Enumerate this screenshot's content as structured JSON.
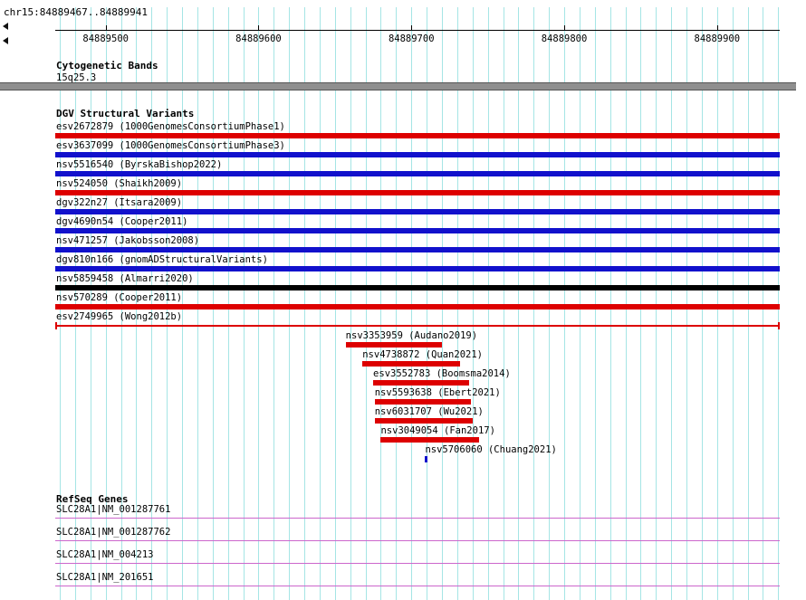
{
  "chart_data": {
    "type": "bar",
    "title": "chr15:84889467..84889941",
    "xlabel": "",
    "ylabel": "",
    "x_range": [
      84889467,
      84889941
    ],
    "x_ticks": [
      84889500,
      84889600,
      84889700,
      84889800,
      84889900
    ],
    "x_minor_step": 10,
    "grid": "on",
    "tracks": [
      {
        "label": "esv2672879 (1000GenomesConsortiumPhase1)",
        "color": "red",
        "style": "box",
        "start": 84889467,
        "end": 84889941
      },
      {
        "label": "esv3637099 (1000GenomesConsortiumPhase3)",
        "color": "blue",
        "style": "box",
        "start": 84889467,
        "end": 84889941
      },
      {
        "label": "nsv5516540 (ByrskaBishop2022)",
        "color": "blue",
        "style": "box",
        "start": 84889467,
        "end": 84889941
      },
      {
        "label": "nsv524050 (Shaikh2009)",
        "color": "red",
        "style": "box",
        "start": 84889467,
        "end": 84889941
      },
      {
        "label": "dgv322n27 (Itsara2009)",
        "color": "blue",
        "style": "box",
        "start": 84889467,
        "end": 84889941
      },
      {
        "label": "dgv4690n54 (Cooper2011)",
        "color": "blue",
        "style": "box",
        "start": 84889467,
        "end": 84889941
      },
      {
        "label": "nsv471257 (Jakobsson2008)",
        "color": "blue",
        "style": "box",
        "start": 84889467,
        "end": 84889941
      },
      {
        "label": "dgv810n166 (gnomADStructuralVariants)",
        "color": "blue",
        "style": "box",
        "start": 84889467,
        "end": 84889941
      },
      {
        "label": "nsv5859458 (Almarri2020)",
        "color": "black",
        "style": "box",
        "start": 84889467,
        "end": 84889941
      },
      {
        "label": "nsv570289 (Cooper2011)",
        "color": "red",
        "style": "box",
        "start": 84889467,
        "end": 84889941
      },
      {
        "label": "esv2749965 (Wong2012b)",
        "color": "red",
        "style": "line",
        "start": 84889467,
        "end": 84889941
      },
      {
        "label": "nsv3353959 (Audano2019)",
        "color": "red",
        "style": "box",
        "start": 84889657,
        "end": 84889720
      },
      {
        "label": "nsv4738872 (Quan2021)",
        "color": "red",
        "style": "box",
        "start": 84889668,
        "end": 84889732
      },
      {
        "label": "esv3552783 (Boomsma2014)",
        "color": "red",
        "style": "box",
        "start": 84889675,
        "end": 84889738
      },
      {
        "label": "nsv5593638 (Ebert2021)",
        "color": "red",
        "style": "box",
        "start": 84889676,
        "end": 84889739
      },
      {
        "label": "nsv6031707 (Wu2021)",
        "color": "red",
        "style": "box",
        "start": 84889676,
        "end": 84889740
      },
      {
        "label": "nsv3049054 (Fan2017)",
        "color": "red",
        "style": "box",
        "start": 84889680,
        "end": 84889744
      },
      {
        "label": "nsv5706060 (Chuang2021)",
        "color": "blue",
        "style": "tick",
        "start": 84889709,
        "end": 84889710
      }
    ],
    "genes": [
      {
        "label": "SLC28A1|NM_001287761"
      },
      {
        "label": "SLC28A1|NM_001287762"
      },
      {
        "label": "SLC28A1|NM_004213"
      },
      {
        "label": "SLC28A1|NM_201651"
      }
    ]
  },
  "sections": {
    "cytoband": {
      "header": "Cytogenetic Bands",
      "band_label": "15q25.3"
    },
    "variants": {
      "header": "DGV Structural Variants"
    },
    "genes": {
      "header": "RefSeq Genes"
    }
  },
  "colors": {
    "red": "#dd0000",
    "blue": "#1111cc",
    "black": "#000000",
    "grid": "#a5e5e5",
    "gene_line": "#cc66cc",
    "cytoband_fill": "#8f8f8f",
    "cytoband_border": "#555555",
    "ruler_line": "#000000"
  }
}
